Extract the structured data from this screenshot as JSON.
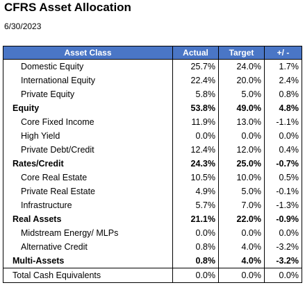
{
  "header": {
    "title": "CFRS Asset Allocation",
    "date": "6/30/2023"
  },
  "table": {
    "columns": [
      "Asset Class",
      "Actual",
      "Target",
      "+/ -"
    ],
    "sections": [
      {
        "rows": [
          [
            "Domestic Equity",
            "25.7%",
            "24.0%",
            "1.7%"
          ],
          [
            "International Equity",
            "22.4%",
            "20.0%",
            "2.4%"
          ],
          [
            "Private Equity",
            "5.8%",
            "5.0%",
            "0.8%"
          ]
        ],
        "total": [
          "Equity",
          "53.8%",
          "49.0%",
          "4.8%"
        ]
      },
      {
        "rows": [
          [
            "Core Fixed Income",
            "11.9%",
            "13.0%",
            "-1.1%"
          ],
          [
            "High Yield",
            "0.0%",
            "0.0%",
            "0.0%"
          ],
          [
            "Private Debt/Credit",
            "12.4%",
            "12.0%",
            "0.4%"
          ]
        ],
        "total": [
          "Rates/Credit",
          "24.3%",
          "25.0%",
          "-0.7%"
        ]
      },
      {
        "rows": [
          [
            "Core Real Estate",
            "10.5%",
            "10.0%",
            "0.5%"
          ],
          [
            "Private Real Estate",
            "4.9%",
            "5.0%",
            "-0.1%"
          ],
          [
            "Infrastructure",
            "5.7%",
            "7.0%",
            "-1.3%"
          ]
        ],
        "total": [
          "Real Assets",
          "21.1%",
          "22.0%",
          "-0.9%"
        ]
      },
      {
        "rows": [
          [
            "Midstream Energy/ MLPs",
            "0.0%",
            "0.0%",
            "0.0%"
          ],
          [
            "Alternative Credit",
            "0.8%",
            "4.0%",
            "-3.2%"
          ]
        ],
        "total": [
          "Multi-Assets",
          "0.8%",
          "4.0%",
          "-3.2%"
        ]
      }
    ],
    "footer_row": [
      "Total Cash Equivalents",
      "0.0%",
      "0.0%",
      "0.0%"
    ]
  }
}
